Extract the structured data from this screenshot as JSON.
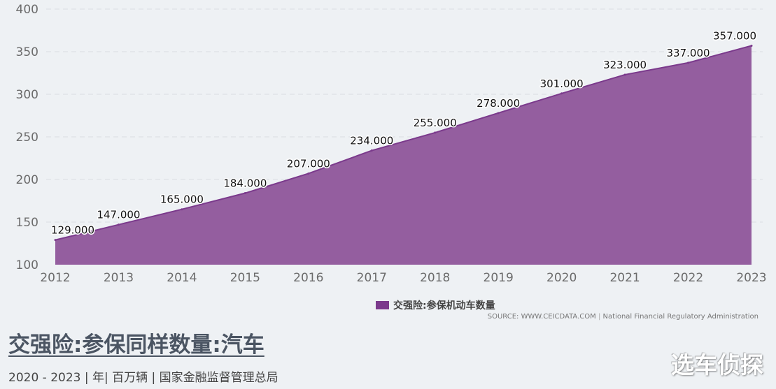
{
  "chart_data": {
    "type": "area",
    "x": [
      "2012",
      "2013",
      "2014",
      "2015",
      "2016",
      "2017",
      "2018",
      "2019",
      "2020",
      "2021",
      "2022",
      "2023"
    ],
    "series": [
      {
        "name": "交强险:参保机动车数量",
        "values": [
          129,
          147,
          165,
          184,
          207,
          234,
          255,
          278,
          301,
          323,
          337,
          357
        ],
        "labels": [
          "129.000",
          "147.000",
          "165.000",
          "184.000",
          "207.000",
          "234.000",
          "255.000",
          "278.000",
          "301.000",
          "323.000",
          "337.000",
          "357.000"
        ],
        "color": "#7b3a8c"
      }
    ],
    "ylim": [
      100,
      400
    ],
    "yticks": [
      "100",
      "150",
      "200",
      "250",
      "300",
      "350",
      "400"
    ],
    "grid": true,
    "legend_position": "bottom"
  },
  "source": {
    "text": "SOURCE: WWW.CEICDATA.COM",
    "separator": "|",
    "org": "National Financial Regulatory Administration"
  },
  "title": "交强险:参保同样数量:汽车",
  "subtitle": "2020 - 2023 | 年| 百万辆 | 国家金融监督管理总局",
  "watermark": "选车侦探"
}
